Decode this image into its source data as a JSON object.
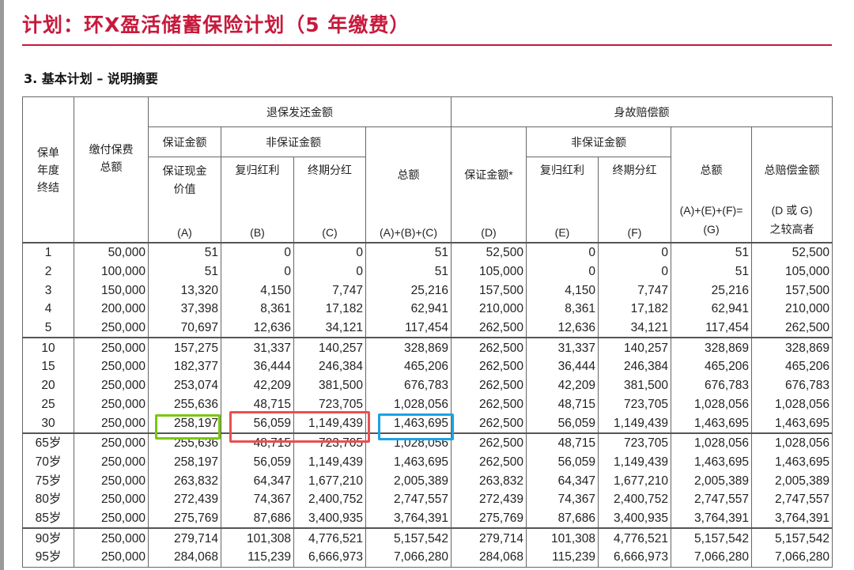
{
  "title": "计划：环X盈活储蓄保险计划（5 年缴费）",
  "section": "3.  基本计划 – 说明摘要",
  "header": {
    "policy_year": "保单\n年度\n终结",
    "premium_paid": "缴付保费\n总额",
    "surrender": "退保发还金额",
    "death": "身故赔偿额",
    "guaranteed": "保证金额",
    "non_guaranteed": "非保证金额",
    "non_guaranteed_2": "非保证金额",
    "gcv": "保证现金\n价值",
    "gcv_code": "(A)",
    "rev_bonus": "复归红利",
    "rev_bonus_code": "(B)",
    "terminal": "终期分红",
    "terminal_code": "(C)",
    "total": "总额",
    "total_code": "(A)+(B)+(C)",
    "guaranteed_death": "保证金额*",
    "guaranteed_death_code": "(D)",
    "rev_bonus_2": "复归红利",
    "rev_bonus_2_code": "(E)",
    "terminal_2": "终期分红",
    "terminal_2_code": "(F)",
    "total_2": "总额",
    "total_2_code": "(A)+(E)+(F)=\n(G)",
    "total_death": "总赔偿金额",
    "total_death_code": "(D 或 G)\n之较高者"
  },
  "groups": [
    [
      [
        "1",
        "50,000",
        "51",
        "0",
        "0",
        "51",
        "52,500",
        "0",
        "0",
        "51",
        "52,500"
      ],
      [
        "2",
        "100,000",
        "51",
        "0",
        "0",
        "51",
        "105,000",
        "0",
        "0",
        "51",
        "105,000"
      ],
      [
        "3",
        "150,000",
        "13,320",
        "4,150",
        "7,747",
        "25,216",
        "157,500",
        "4,150",
        "7,747",
        "25,216",
        "157,500"
      ],
      [
        "4",
        "200,000",
        "37,398",
        "8,361",
        "17,182",
        "62,941",
        "210,000",
        "8,361",
        "17,182",
        "62,941",
        "210,000"
      ],
      [
        "5",
        "250,000",
        "70,697",
        "12,636",
        "34,121",
        "117,454",
        "262,500",
        "12,636",
        "34,121",
        "117,454",
        "262,500"
      ]
    ],
    [
      [
        "10",
        "250,000",
        "157,275",
        "31,337",
        "140,257",
        "328,869",
        "262,500",
        "31,337",
        "140,257",
        "328,869",
        "328,869"
      ],
      [
        "15",
        "250,000",
        "182,377",
        "36,444",
        "246,384",
        "465,206",
        "262,500",
        "36,444",
        "246,384",
        "465,206",
        "465,206"
      ],
      [
        "20",
        "250,000",
        "253,074",
        "42,209",
        "381,500",
        "676,783",
        "262,500",
        "42,209",
        "381,500",
        "676,783",
        "676,783"
      ],
      [
        "25",
        "250,000",
        "255,636",
        "48,715",
        "723,705",
        "1,028,056",
        "262,500",
        "48,715",
        "723,705",
        "1,028,056",
        "1,028,056"
      ],
      [
        "30",
        "250,000",
        "258,197",
        "56,059",
        "1,149,439",
        "1,463,695",
        "262,500",
        "56,059",
        "1,149,439",
        "1,463,695",
        "1,463,695"
      ]
    ],
    [
      [
        "65岁",
        "250,000",
        "255,636",
        "48,715",
        "723,705",
        "1,028,056",
        "262,500",
        "48,715",
        "723,705",
        "1,028,056",
        "1,028,056"
      ],
      [
        "70岁",
        "250,000",
        "258,197",
        "56,059",
        "1,149,439",
        "1,463,695",
        "262,500",
        "56,059",
        "1,149,439",
        "1,463,695",
        "1,463,695"
      ],
      [
        "75岁",
        "250,000",
        "263,832",
        "64,347",
        "1,677,210",
        "2,005,389",
        "263,832",
        "64,347",
        "1,677,210",
        "2,005,389",
        "2,005,389"
      ],
      [
        "80岁",
        "250,000",
        "272,439",
        "74,367",
        "2,400,752",
        "2,747,557",
        "272,439",
        "74,367",
        "2,400,752",
        "2,747,557",
        "2,747,557"
      ],
      [
        "85岁",
        "250,000",
        "275,769",
        "87,686",
        "3,400,935",
        "3,764,391",
        "275,769",
        "87,686",
        "3,400,935",
        "3,764,391",
        "3,764,391"
      ]
    ],
    [
      [
        "90岁",
        "250,000",
        "279,714",
        "101,308",
        "4,776,521",
        "5,157,542",
        "279,714",
        "101,308",
        "4,776,521",
        "5,157,542",
        "5,157,542"
      ],
      [
        "95岁",
        "250,000",
        "284,068",
        "115,239",
        "6,666,973",
        "7,066,280",
        "284,068",
        "115,239",
        "6,666,973",
        "7,066,280",
        "7,066,280"
      ]
    ]
  ],
  "highlights": {
    "green": "#7ac70c",
    "red": "#e8504f",
    "blue": "#1aa3e8"
  },
  "colors": {
    "title": "#c8193c"
  }
}
